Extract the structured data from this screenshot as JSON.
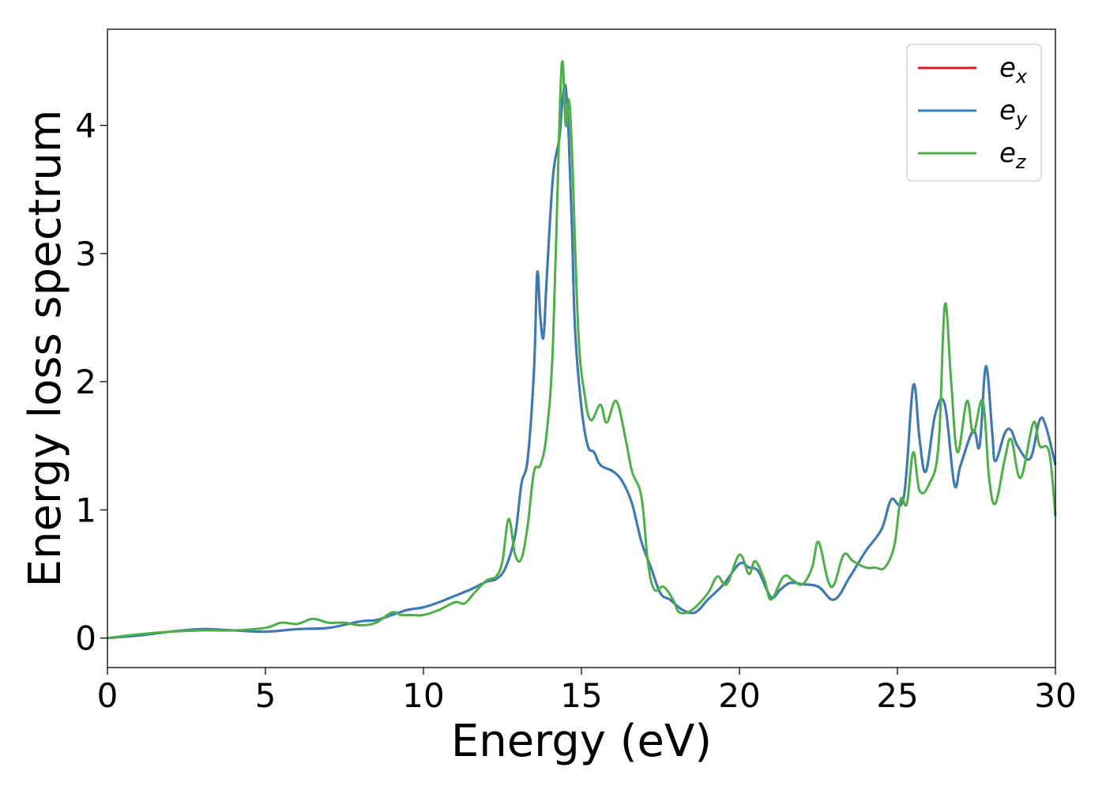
{
  "chart_data": {
    "type": "line",
    "xlabel": "Energy (eV)",
    "ylabel": "Energy loss spectrum",
    "xlim": [
      0,
      30
    ],
    "ylim": [
      -0.23,
      4.75
    ],
    "xticks": [
      0,
      5,
      10,
      15,
      20,
      25,
      30
    ],
    "yticks": [
      0,
      1,
      2,
      3,
      4
    ],
    "grid": false,
    "legend_position": "top-right",
    "series": [
      {
        "name": "e_x",
        "legend_main": "e",
        "legend_sub": "x",
        "color": "#e41a1c",
        "points": [
          [
            0,
            0
          ],
          [
            1,
            0.02
          ],
          [
            2,
            0.05
          ],
          [
            3,
            0.07
          ],
          [
            4,
            0.06
          ],
          [
            5,
            0.05
          ],
          [
            6,
            0.07
          ],
          [
            7,
            0.08
          ],
          [
            8,
            0.13
          ],
          [
            8.5,
            0.14
          ],
          [
            9,
            0.18
          ],
          [
            9.5,
            0.22
          ],
          [
            10,
            0.24
          ],
          [
            10.5,
            0.28
          ],
          [
            11,
            0.33
          ],
          [
            11.5,
            0.38
          ],
          [
            12,
            0.44
          ],
          [
            12.3,
            0.46
          ],
          [
            12.6,
            0.55
          ],
          [
            12.9,
            0.8
          ],
          [
            13.1,
            1.2
          ],
          [
            13.3,
            1.4
          ],
          [
            13.5,
            2.1
          ],
          [
            13.6,
            2.85
          ],
          [
            13.7,
            2.5
          ],
          [
            13.8,
            2.35
          ],
          [
            13.9,
            2.8
          ],
          [
            14.1,
            3.6
          ],
          [
            14.3,
            3.9
          ],
          [
            14.4,
            4.2
          ],
          [
            14.5,
            4.3
          ],
          [
            14.6,
            3.9
          ],
          [
            14.7,
            3.2
          ],
          [
            14.8,
            2.4
          ],
          [
            15,
            1.8
          ],
          [
            15.2,
            1.5
          ],
          [
            15.4,
            1.45
          ],
          [
            15.6,
            1.35
          ],
          [
            16,
            1.3
          ],
          [
            16.3,
            1.22
          ],
          [
            16.6,
            1.05
          ],
          [
            16.9,
            0.75
          ],
          [
            17.2,
            0.55
          ],
          [
            17.5,
            0.35
          ],
          [
            17.8,
            0.3
          ],
          [
            18.2,
            0.22
          ],
          [
            18.6,
            0.2
          ],
          [
            19,
            0.3
          ],
          [
            19.5,
            0.42
          ],
          [
            20,
            0.58
          ],
          [
            20.3,
            0.55
          ],
          [
            20.6,
            0.52
          ],
          [
            21,
            0.32
          ],
          [
            21.3,
            0.38
          ],
          [
            21.6,
            0.43
          ],
          [
            22,
            0.42
          ],
          [
            22.5,
            0.4
          ],
          [
            23,
            0.3
          ],
          [
            23.5,
            0.48
          ],
          [
            24,
            0.68
          ],
          [
            24.5,
            0.85
          ],
          [
            24.8,
            1.08
          ],
          [
            25.2,
            1.1
          ],
          [
            25.5,
            1.97
          ],
          [
            25.7,
            1.55
          ],
          [
            25.9,
            1.3
          ],
          [
            26.2,
            1.75
          ],
          [
            26.5,
            1.82
          ],
          [
            26.8,
            1.2
          ],
          [
            27,
            1.35
          ],
          [
            27.4,
            1.62
          ],
          [
            27.6,
            1.5
          ],
          [
            27.8,
            2.12
          ],
          [
            28,
            1.6
          ],
          [
            28.1,
            1.38
          ],
          [
            28.4,
            1.6
          ],
          [
            28.6,
            1.62
          ],
          [
            28.8,
            1.5
          ],
          [
            29.2,
            1.4
          ],
          [
            29.5,
            1.7
          ],
          [
            29.7,
            1.65
          ],
          [
            30,
            1.35
          ]
        ]
      },
      {
        "name": "e_y",
        "legend_main": "e",
        "legend_sub": "y",
        "color": "#377eb8",
        "points": [
          [
            0,
            0
          ],
          [
            1,
            0.02
          ],
          [
            2,
            0.05
          ],
          [
            3,
            0.07
          ],
          [
            4,
            0.06
          ],
          [
            5,
            0.05
          ],
          [
            6,
            0.07
          ],
          [
            7,
            0.08
          ],
          [
            8,
            0.13
          ],
          [
            8.5,
            0.14
          ],
          [
            9,
            0.18
          ],
          [
            9.5,
            0.22
          ],
          [
            10,
            0.24
          ],
          [
            10.5,
            0.28
          ],
          [
            11,
            0.33
          ],
          [
            11.5,
            0.38
          ],
          [
            12,
            0.44
          ],
          [
            12.3,
            0.46
          ],
          [
            12.6,
            0.55
          ],
          [
            12.9,
            0.8
          ],
          [
            13.1,
            1.2
          ],
          [
            13.3,
            1.4
          ],
          [
            13.5,
            2.1
          ],
          [
            13.6,
            2.85
          ],
          [
            13.7,
            2.5
          ],
          [
            13.8,
            2.35
          ],
          [
            13.9,
            2.8
          ],
          [
            14.1,
            3.6
          ],
          [
            14.3,
            3.9
          ],
          [
            14.4,
            4.2
          ],
          [
            14.5,
            4.3
          ],
          [
            14.6,
            3.9
          ],
          [
            14.7,
            3.2
          ],
          [
            14.8,
            2.4
          ],
          [
            15,
            1.8
          ],
          [
            15.2,
            1.5
          ],
          [
            15.4,
            1.45
          ],
          [
            15.6,
            1.35
          ],
          [
            16,
            1.3
          ],
          [
            16.3,
            1.22
          ],
          [
            16.6,
            1.05
          ],
          [
            16.9,
            0.75
          ],
          [
            17.2,
            0.55
          ],
          [
            17.5,
            0.35
          ],
          [
            17.8,
            0.3
          ],
          [
            18.2,
            0.22
          ],
          [
            18.6,
            0.2
          ],
          [
            19,
            0.3
          ],
          [
            19.5,
            0.42
          ],
          [
            20,
            0.58
          ],
          [
            20.3,
            0.55
          ],
          [
            20.6,
            0.52
          ],
          [
            21,
            0.32
          ],
          [
            21.3,
            0.38
          ],
          [
            21.6,
            0.43
          ],
          [
            22,
            0.42
          ],
          [
            22.5,
            0.4
          ],
          [
            23,
            0.3
          ],
          [
            23.5,
            0.48
          ],
          [
            24,
            0.68
          ],
          [
            24.5,
            0.85
          ],
          [
            24.8,
            1.08
          ],
          [
            25.2,
            1.1
          ],
          [
            25.5,
            1.97
          ],
          [
            25.7,
            1.55
          ],
          [
            25.9,
            1.3
          ],
          [
            26.2,
            1.75
          ],
          [
            26.5,
            1.82
          ],
          [
            26.8,
            1.2
          ],
          [
            27,
            1.35
          ],
          [
            27.4,
            1.62
          ],
          [
            27.6,
            1.5
          ],
          [
            27.8,
            2.12
          ],
          [
            28,
            1.6
          ],
          [
            28.1,
            1.38
          ],
          [
            28.4,
            1.6
          ],
          [
            28.6,
            1.62
          ],
          [
            28.8,
            1.5
          ],
          [
            29.2,
            1.4
          ],
          [
            29.5,
            1.7
          ],
          [
            29.7,
            1.65
          ],
          [
            30,
            1.35
          ]
        ]
      },
      {
        "name": "e_z",
        "legend_main": "e",
        "legend_sub": "z",
        "color": "#4daf4a",
        "points": [
          [
            0,
            0
          ],
          [
            1,
            0.03
          ],
          [
            2,
            0.05
          ],
          [
            3,
            0.06
          ],
          [
            4,
            0.06
          ],
          [
            5,
            0.08
          ],
          [
            5.5,
            0.12
          ],
          [
            6,
            0.11
          ],
          [
            6.5,
            0.15
          ],
          [
            7,
            0.12
          ],
          [
            7.5,
            0.12
          ],
          [
            8,
            0.1
          ],
          [
            8.5,
            0.12
          ],
          [
            9,
            0.2
          ],
          [
            9.3,
            0.18
          ],
          [
            9.6,
            0.18
          ],
          [
            10,
            0.18
          ],
          [
            10.5,
            0.22
          ],
          [
            11,
            0.28
          ],
          [
            11.3,
            0.27
          ],
          [
            11.6,
            0.35
          ],
          [
            12,
            0.45
          ],
          [
            12.3,
            0.48
          ],
          [
            12.5,
            0.6
          ],
          [
            12.7,
            0.93
          ],
          [
            12.9,
            0.65
          ],
          [
            13.1,
            0.62
          ],
          [
            13.3,
            0.88
          ],
          [
            13.5,
            1.3
          ],
          [
            13.7,
            1.35
          ],
          [
            13.9,
            1.6
          ],
          [
            14.1,
            2.3
          ],
          [
            14.3,
            4.0
          ],
          [
            14.4,
            4.5
          ],
          [
            14.5,
            4.0
          ],
          [
            14.6,
            4.2
          ],
          [
            14.7,
            3.8
          ],
          [
            14.9,
            2.4
          ],
          [
            15.1,
            1.9
          ],
          [
            15.3,
            1.7
          ],
          [
            15.6,
            1.82
          ],
          [
            15.8,
            1.68
          ],
          [
            16.1,
            1.85
          ],
          [
            16.4,
            1.55
          ],
          [
            16.6,
            1.3
          ],
          [
            16.9,
            1.1
          ],
          [
            17.1,
            0.6
          ],
          [
            17.3,
            0.38
          ],
          [
            17.6,
            0.4
          ],
          [
            17.9,
            0.3
          ],
          [
            18.1,
            0.2
          ],
          [
            18.5,
            0.22
          ],
          [
            19,
            0.35
          ],
          [
            19.3,
            0.48
          ],
          [
            19.6,
            0.42
          ],
          [
            20,
            0.65
          ],
          [
            20.3,
            0.5
          ],
          [
            20.5,
            0.6
          ],
          [
            20.8,
            0.45
          ],
          [
            21,
            0.3
          ],
          [
            21.4,
            0.48
          ],
          [
            21.7,
            0.45
          ],
          [
            22,
            0.42
          ],
          [
            22.3,
            0.55
          ],
          [
            22.5,
            0.75
          ],
          [
            22.8,
            0.45
          ],
          [
            23,
            0.42
          ],
          [
            23.3,
            0.65
          ],
          [
            23.6,
            0.6
          ],
          [
            24,
            0.55
          ],
          [
            24.3,
            0.55
          ],
          [
            24.6,
            0.55
          ],
          [
            24.9,
            0.72
          ],
          [
            25.1,
            1.08
          ],
          [
            25.3,
            1.05
          ],
          [
            25.5,
            1.45
          ],
          [
            25.7,
            1.15
          ],
          [
            26,
            1.2
          ],
          [
            26.3,
            1.5
          ],
          [
            26.5,
            2.6
          ],
          [
            26.7,
            2.0
          ],
          [
            26.9,
            1.45
          ],
          [
            27.2,
            1.85
          ],
          [
            27.4,
            1.6
          ],
          [
            27.7,
            1.85
          ],
          [
            27.9,
            1.25
          ],
          [
            28.1,
            1.05
          ],
          [
            28.4,
            1.4
          ],
          [
            28.6,
            1.55
          ],
          [
            28.9,
            1.25
          ],
          [
            29.3,
            1.68
          ],
          [
            29.5,
            1.5
          ],
          [
            29.8,
            1.45
          ],
          [
            30,
            0.95
          ]
        ]
      }
    ]
  }
}
